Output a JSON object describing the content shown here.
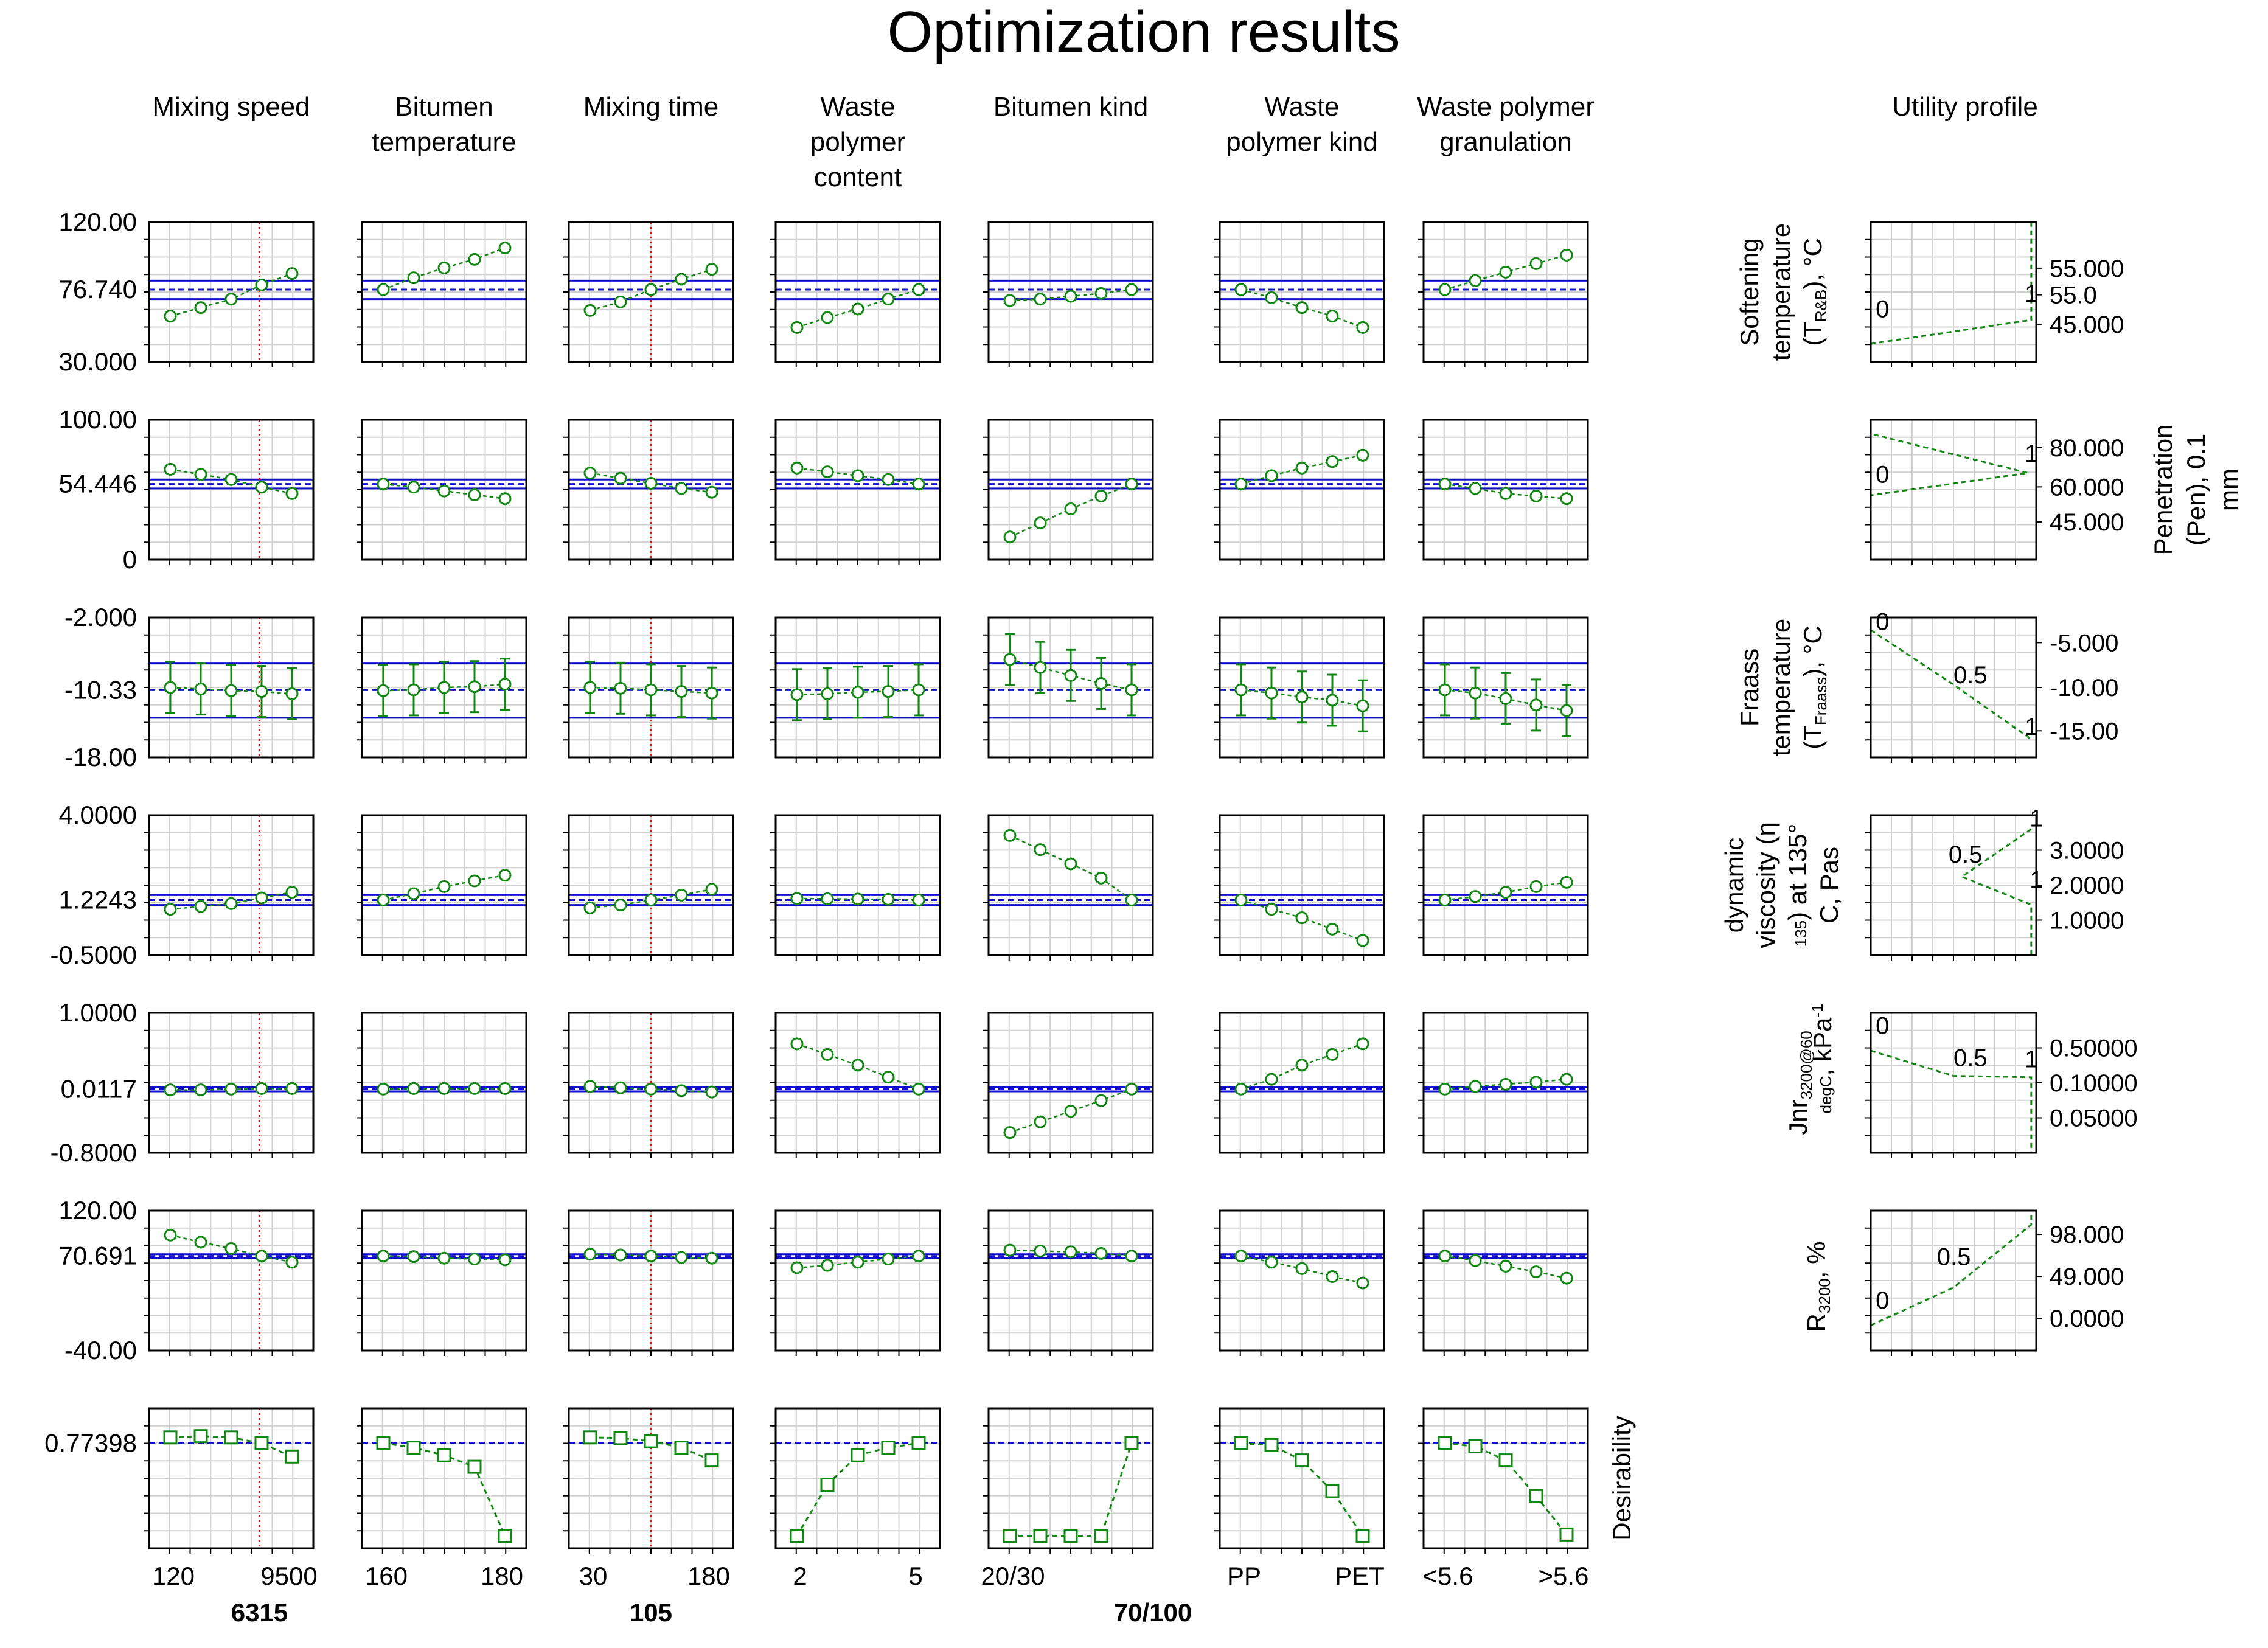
{
  "title": "Optimization results",
  "columns": [
    {
      "label_lines": [
        "Mixing speed"
      ],
      "x_ticks": [
        "120",
        "9500"
      ],
      "current": "6315",
      "cur_frac": 0.672
    },
    {
      "label_lines": [
        "Bitumen",
        "temperature"
      ],
      "x_ticks": [
        "160",
        "180"
      ],
      "current": "",
      "cur_frac": 0.0
    },
    {
      "label_lines": [
        "Mixing time"
      ],
      "x_ticks": [
        "30",
        "180"
      ],
      "current": "105",
      "cur_frac": 0.5
    },
    {
      "label_lines": [
        "Waste",
        "polymer",
        "content"
      ],
      "x_ticks": [
        "2",
        "5"
      ],
      "current": "",
      "cur_frac": 1.0
    },
    {
      "label_lines": [
        "Bitumen kind"
      ],
      "x_ticks": [
        "20/30",
        ""
      ],
      "current": "70/100",
      "cur_frac": 1.0
    },
    {
      "label_lines": [
        "Waste",
        "polymer kind"
      ],
      "x_ticks": [
        "PP",
        "PET"
      ],
      "current": "",
      "cur_frac": 0.0
    },
    {
      "label_lines": [
        "Waste polymer",
        "granulation"
      ],
      "x_ticks": [
        "<5.6",
        ">5.6"
      ],
      "current": "",
      "cur_frac": 0.0
    }
  ],
  "utility_header": "Utility profile",
  "desirability_label": "Desirability",
  "chart_data": {
    "type": "prediction_profiler",
    "title": "Optimization results",
    "rows": [
      {
        "name": "Softening temperature (T_R&B), °C",
        "label_lines": [
          "Softening",
          "temperature",
          "(T",
          "R&B",
          "), °C"
        ],
        "y_ticks": [
          "120.00",
          "76.740",
          "30.000"
        ],
        "ylim": [
          30,
          120
        ],
        "current": 76.74,
        "ci": [
          70,
          83
        ],
        "ci_style": "band",
        "series": [
          [
            58,
            64,
            70,
            80,
            88
          ],
          [
            76.7,
            85,
            92,
            98,
            106
          ],
          [
            62,
            68,
            76.7,
            84,
            91
          ],
          [
            50,
            57,
            63,
            70,
            76.7
          ],
          [
            69,
            70,
            72,
            74,
            76.7
          ],
          [
            76.7,
            71,
            64,
            58,
            50
          ],
          [
            76.7,
            83,
            89,
            95,
            101
          ]
        ],
        "utility": {
          "ticks": [
            "55.000",
            "55.0",
            "45.000"
          ],
          "tick_fracs": [
            0.33,
            0.52,
            0.73
          ],
          "labels": [
            "0",
            "1"
          ],
          "label_pos": [
            [
              0.03,
              0.68
            ],
            [
              0.93,
              0.57
            ]
          ],
          "line": [
            [
              0.0,
              0.87
            ],
            [
              0.97,
              0.7
            ],
            [
              0.97,
              0.0
            ]
          ]
        }
      },
      {
        "name": "Penetration (Pen), 0.1 mm",
        "label_lines": [
          "Penetration",
          "(Pen), 0.1",
          "mm"
        ],
        "y_ticks": [
          "100.00",
          "54.446",
          "0"
        ],
        "ylim": [
          0,
          100
        ],
        "current": 54.446,
        "ci": [
          51,
          58
        ],
        "ci_style": "band",
        "series": [
          [
            66,
            62,
            58,
            52,
            47
          ],
          [
            54.4,
            52,
            49,
            46,
            43
          ],
          [
            63,
            59,
            55,
            51,
            48
          ],
          [
            67,
            64,
            61,
            58,
            54.4
          ],
          [
            13,
            24,
            35,
            45,
            54.4
          ],
          [
            54.4,
            61,
            67,
            72,
            77
          ],
          [
            54.4,
            51,
            47,
            45,
            43
          ]
        ],
        "utility": {
          "ticks": [
            "80.000",
            "60.000",
            "45.000"
          ],
          "tick_fracs": [
            0.2,
            0.48,
            0.73
          ],
          "labels": [
            "0",
            "1"
          ],
          "label_pos": [
            [
              0.03,
              0.45
            ],
            [
              0.93,
              0.3
            ]
          ],
          "line": [
            [
              0.0,
              0.0
            ],
            [
              0.0,
              0.1
            ],
            [
              0.95,
              0.38
            ],
            [
              0.0,
              0.54
            ],
            [
              0.0,
              1.0
            ]
          ]
        }
      },
      {
        "name": "Fraass temperature (T_Fraass), °C",
        "label_lines": [
          "Fraass",
          "temperature",
          "(T",
          "Fraass",
          "), °C"
        ],
        "y_ticks": [
          "-2.000",
          "-10.33",
          "-18.00"
        ],
        "ylim": [
          -18,
          -2
        ],
        "current": -10.33,
        "ci": [
          -13.8,
          -7
        ],
        "ci_style": "lines",
        "err": 3.2,
        "series": [
          [
            -10,
            -10.2,
            -10.4,
            -10.5,
            -10.8
          ],
          [
            -10.4,
            -10.3,
            -10.0,
            -9.9,
            -9.6
          ],
          [
            -10.0,
            -10.1,
            -10.3,
            -10.5,
            -10.7
          ],
          [
            -10.9,
            -10.8,
            -10.6,
            -10.5,
            -10.3
          ],
          [
            -6.5,
            -7.5,
            -8.5,
            -9.5,
            -10.3
          ],
          [
            -10.3,
            -10.7,
            -11.2,
            -11.6,
            -12.3
          ],
          [
            -10.3,
            -10.7,
            -11.4,
            -12.2,
            -12.9
          ]
        ],
        "utility": {
          "ticks": [
            "-5.000",
            "-10.00",
            "-15.00"
          ],
          "tick_fracs": [
            0.18,
            0.5,
            0.81
          ],
          "labels": [
            "0",
            "0.5",
            "1"
          ],
          "label_pos": [
            [
              0.03,
              0.09
            ],
            [
              0.5,
              0.47
            ],
            [
              0.93,
              0.84
            ]
          ],
          "line": [
            [
              0.0,
              0.09
            ],
            [
              0.5,
              0.48
            ],
            [
              0.97,
              0.87
            ]
          ]
        }
      },
      {
        "name": "dynamic viscosity (η135) at 135° C, Pas",
        "label_lines": [
          "dynamic",
          "viscosity (η",
          "135",
          ") at 135°",
          "C, Pas"
        ],
        "y_ticks": [
          "4.0000",
          "1.2243",
          "-0.5000"
        ],
        "ylim": [
          -0.5,
          4
        ],
        "current": 1.2243,
        "ci": [
          1.05,
          1.4
        ],
        "ci_style": "band",
        "series": [
          [
            0.9,
            1.0,
            1.1,
            1.3,
            1.5
          ],
          [
            1.2243,
            1.45,
            1.7,
            1.9,
            2.1
          ],
          [
            0.95,
            1.05,
            1.2243,
            1.4,
            1.6
          ],
          [
            1.28,
            1.27,
            1.26,
            1.25,
            1.2243
          ],
          [
            3.5,
            3.0,
            2.5,
            2.0,
            1.2243
          ],
          [
            1.2243,
            0.9,
            0.6,
            0.2,
            -0.2
          ],
          [
            1.2243,
            1.35,
            1.5,
            1.7,
            1.85
          ]
        ],
        "utility": {
          "ticks": [
            "3.0000",
            "2.0000",
            "1.0000"
          ],
          "tick_fracs": [
            0.25,
            0.5,
            0.75
          ],
          "labels": [
            "1",
            "0.5",
            "1"
          ],
          "label_pos": [
            [
              0.96,
              0.08
            ],
            [
              0.47,
              0.34
            ],
            [
              0.96,
              0.52
            ]
          ],
          "line": [
            [
              0.97,
              0.1
            ],
            [
              0.55,
              0.44
            ],
            [
              0.97,
              0.64
            ],
            [
              0.97,
              1.0
            ]
          ]
        }
      },
      {
        "name": "Jnr3200@60degC, kPa-1",
        "label_lines": [
          "Jnr",
          "3200@60",
          "degC",
          ", kPa",
          "-1"
        ],
        "y_ticks": [
          "1.0000",
          "0.0117",
          "-0.8000"
        ],
        "ylim": [
          -0.8,
          1
        ],
        "current": 0.0117,
        "ci": [
          -0.02,
          0.04
        ],
        "ci_style": "band",
        "series": [
          [
            0.0,
            0.0,
            0.0117,
            0.02,
            0.02
          ],
          [
            0.0117,
            0.02,
            0.02,
            0.02,
            0.02
          ],
          [
            0.05,
            0.03,
            0.0117,
            -0.01,
            -0.03
          ],
          [
            0.65,
            0.5,
            0.35,
            0.18,
            0.0117
          ],
          [
            -0.6,
            -0.45,
            -0.3,
            -0.15,
            0.0117
          ],
          [
            0.0117,
            0.15,
            0.35,
            0.5,
            0.65
          ],
          [
            0.0117,
            0.05,
            0.08,
            0.11,
            0.15
          ]
        ],
        "utility": {
          "ticks": [
            "0.50000",
            "0.10000",
            "0.05000"
          ],
          "tick_fracs": [
            0.25,
            0.5,
            0.75
          ],
          "labels": [
            "0",
            "0.5",
            "1"
          ],
          "label_pos": [
            [
              0.03,
              0.15
            ],
            [
              0.5,
              0.38
            ],
            [
              0.93,
              0.39
            ]
          ],
          "line": [
            [
              0.0,
              0.27
            ],
            [
              0.5,
              0.45
            ],
            [
              0.97,
              0.46
            ],
            [
              0.97,
              1.0
            ]
          ]
        }
      },
      {
        "name": "R3200, %",
        "label_lines": [
          "R",
          "3200",
          ", %"
        ],
        "y_ticks": [
          "120.00",
          "70.691",
          "-40.00"
        ],
        "ylim": [
          -40,
          120
        ],
        "current": 70.691,
        "ci": [
          68,
          73
        ],
        "ci_style": "band",
        "series": [
          [
            97,
            88,
            80,
            70.691,
            63
          ],
          [
            70.691,
            70,
            68,
            67,
            66
          ],
          [
            73,
            72,
            70.691,
            69,
            68
          ],
          [
            56,
            59,
            63,
            67,
            70.691
          ],
          [
            78,
            77,
            76,
            74,
            70.691
          ],
          [
            70.691,
            63,
            55,
            45,
            37
          ],
          [
            70.691,
            65,
            58,
            51,
            43
          ]
        ],
        "utility": {
          "ticks": [
            "98.000",
            "49.000",
            "0.0000"
          ],
          "tick_fracs": [
            0.17,
            0.47,
            0.77
          ],
          "labels": [
            "0.5",
            "0"
          ],
          "label_pos": [
            [
              0.4,
              0.39
            ],
            [
              0.03,
              0.7
            ]
          ],
          "line": [
            [
              0.0,
              0.82
            ],
            [
              0.5,
              0.55
            ],
            [
              0.97,
              0.1
            ],
            [
              0.97,
              0.0
            ]
          ]
        }
      },
      {
        "name": "Desirability",
        "label_lines": [
          "Desirability"
        ],
        "y_ticks": [
          "0.77398"
        ],
        "ylim": [
          0,
          1
        ],
        "current": 0.77398,
        "ci_style": "none",
        "series": [
          [
            0.82,
            0.83,
            0.82,
            0.77398,
            0.67
          ],
          [
            0.77398,
            0.74,
            0.68,
            0.59,
            0.05
          ],
          [
            0.82,
            0.815,
            0.79,
            0.74,
            0.64
          ],
          [
            0.05,
            0.45,
            0.68,
            0.74,
            0.77398
          ],
          [
            0.05,
            0.05,
            0.05,
            0.05,
            0.77398
          ],
          [
            0.77398,
            0.76,
            0.64,
            0.4,
            0.05
          ],
          [
            0.77398,
            0.75,
            0.64,
            0.36,
            0.06
          ]
        ]
      }
    ]
  }
}
